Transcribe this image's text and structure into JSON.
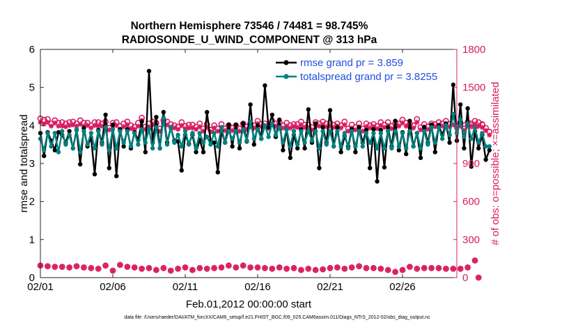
{
  "chart_data": {
    "type": "line",
    "title": "Northern Hemisphere 73546 / 74481 = 98.745%",
    "subtitle": "RADIOSONDE_U_WIND_COMPONENT @ 313 hPa",
    "xlabel": "Feb.01,2012 00:00:00 start",
    "ylabel": "rmse and totalspread",
    "y2label": "# of obs: o=possible; ×=assimilated",
    "footnote": "data file: /Users/raeder/DAI/ATM_forcXX/CAM6_setup/f.e21.FHIST_BGC.f09_025.CAM6assim.011/Diags_NTrS_2012-02/obs_diag_output.nc",
    "x_start": 1,
    "x_end": 29.75,
    "x_step": 0.25,
    "ylim": [
      0,
      6
    ],
    "y2lim": [
      0,
      1800
    ],
    "xticks": [
      1,
      6,
      11,
      16,
      21,
      26
    ],
    "xtick_labels": [
      "02/01",
      "02/06",
      "02/11",
      "02/16",
      "02/21",
      "02/26"
    ],
    "yticks": [
      "0",
      "1",
      "2",
      "3",
      "4",
      "5",
      "6"
    ],
    "y2ticks": [
      "0",
      "300",
      "600",
      "900",
      "1200",
      "1500",
      "1800"
    ],
    "legend_position": "top-right",
    "series": [
      {
        "name": "rmse grand pr = 3.859",
        "axis": "left",
        "color": "#000000",
        "marker": "dot",
        "values": [
          3.8,
          3.2,
          3.82,
          3.6,
          3.35,
          3.82,
          3.75,
          3.55,
          3.85,
          3.4,
          3.88,
          2.98,
          3.93,
          3.45,
          3.68,
          2.72,
          3.88,
          3.55,
          4.28,
          2.88,
          4.02,
          2.67,
          3.9,
          3.45,
          3.9,
          3.4,
          3.82,
          3.62,
          4.1,
          3.3,
          5.43,
          3.55,
          4.22,
          3.4,
          4.35,
          3.55,
          3.95,
          3.6,
          3.58,
          2.82,
          3.75,
          3.52,
          3.75,
          3.3,
          3.62,
          3.3,
          4.35,
          3.6,
          3.55,
          2.77,
          3.85,
          3.55,
          4.02,
          3.45,
          4.02,
          3.4,
          4.05,
          3.58,
          4.55,
          3.5,
          4.0,
          3.65,
          5.05,
          3.95,
          4.28,
          3.7,
          4.15,
          3.35,
          3.9,
          3.15,
          3.75,
          3.4,
          3.9,
          3.4,
          4.42,
          3.55,
          4.05,
          2.88,
          3.95,
          3.55,
          4.4,
          3.45,
          3.95,
          3.3,
          3.72,
          3.45,
          3.9,
          3.3,
          3.95,
          3.55,
          3.88,
          2.88,
          3.9,
          2.53,
          3.88,
          2.9,
          3.95,
          3.45,
          4.12,
          3.35,
          3.82,
          3.25,
          4.12,
          3.45,
          3.8,
          3.15,
          3.95,
          3.55,
          4.02,
          3.3,
          4.0,
          3.75,
          4.05,
          3.55,
          5.07,
          3.6,
          4.55,
          3.4,
          4.45,
          2.92,
          3.85,
          3.4,
          3.75,
          3.1,
          3.35
        ]
      },
      {
        "name": "totalspread grand pr = 3.8255",
        "axis": "left",
        "color": "#00807f",
        "marker": "dot",
        "values": [
          3.65,
          3.35,
          3.8,
          3.45,
          3.8,
          3.3,
          3.85,
          3.5,
          3.75,
          3.4,
          3.9,
          3.3,
          3.85,
          3.5,
          3.8,
          3.4,
          3.85,
          3.5,
          3.95,
          3.35,
          3.9,
          3.4,
          3.85,
          3.55,
          3.85,
          3.45,
          3.8,
          3.5,
          3.9,
          3.55,
          3.9,
          3.4,
          3.95,
          3.4,
          4.2,
          3.5,
          3.95,
          3.55,
          3.75,
          3.45,
          3.85,
          3.5,
          3.8,
          3.4,
          3.8,
          3.55,
          3.7,
          3.5,
          3.8,
          3.45,
          3.95,
          3.55,
          3.85,
          3.65,
          3.85,
          3.55,
          3.9,
          3.6,
          4.1,
          3.65,
          3.9,
          3.65,
          4.0,
          3.7,
          4.05,
          3.75,
          3.95,
          3.55,
          3.9,
          3.45,
          3.85,
          3.5,
          3.85,
          3.55,
          3.85,
          3.6,
          3.85,
          3.4,
          3.85,
          3.5,
          3.85,
          3.45,
          3.85,
          3.45,
          3.8,
          3.4,
          3.85,
          3.45,
          3.85,
          3.45,
          3.8,
          3.55,
          3.8,
          3.4,
          3.8,
          3.4,
          3.85,
          3.4,
          3.85,
          3.45,
          3.8,
          3.4,
          3.85,
          3.45,
          3.8,
          3.4,
          3.85,
          3.5,
          3.95,
          3.55,
          3.95,
          3.65,
          4.0,
          3.75,
          4.3,
          3.8,
          4.15,
          3.7,
          4.05,
          3.65,
          3.95,
          3.55,
          3.8,
          3.45,
          3.45
        ]
      },
      {
        "name": "possible obs",
        "axis": "right",
        "color": "#d81b60",
        "marker": "circle",
        "values": [
          1255,
          1245,
          1250,
          1215,
          1240,
          1220,
          1225,
          1215,
          1225,
          1230,
          1215,
          1240,
          1220,
          1220,
          1200,
          1225,
          1225,
          1215,
          1230,
          1180,
          1220,
          1225,
          1195,
          1215,
          1230,
          1200,
          1190,
          1220,
          1260,
          1190,
          1215,
          1230,
          1220,
          1175,
          1240,
          1230,
          1210,
          1200,
          1190,
          1225,
          1195,
          1205,
          1205,
          1190,
          1215,
          1175,
          1210,
          1165,
          1200,
          1175,
          1210,
          1175,
          1200,
          1180,
          1200,
          1175,
          1215,
          1190,
          1215,
          1200,
          1235,
          1210,
          1215,
          1195,
          1235,
          1215,
          1225,
          1200,
          1220,
          1200,
          1210,
          1210,
          1230,
          1205,
          1205,
          1185,
          1225,
          1215,
          1230,
          1215,
          1220,
          1205,
          1215,
          1200,
          1230,
          1175,
          1205,
          1185,
          1215,
          1175,
          1215,
          1200,
          1210,
          1195,
          1225,
          1205,
          1225,
          1195,
          1215,
          1215,
          1245,
          1220,
          1210,
          1200,
          1250,
          1185,
          1210,
          1190,
          1215,
          1210,
          1225,
          1215,
          1235,
          1210,
          1230,
          1195,
          1220,
          1175,
          1225,
          1215,
          1235,
          1225,
          1210,
          1180,
          1150
        ]
      },
      {
        "name": "assimilated obs",
        "axis": "right",
        "color": "#d81b60",
        "marker": "cross",
        "values": [
          1225,
          1210,
          1225,
          1195,
          1220,
          1195,
          1195,
          1190,
          1200,
          1205,
          1195,
          1210,
          1195,
          1200,
          1180,
          1200,
          1195,
          1195,
          1205,
          1165,
          1195,
          1200,
          1170,
          1190,
          1205,
          1175,
          1170,
          1195,
          1240,
          1170,
          1190,
          1205,
          1195,
          1155,
          1215,
          1205,
          1185,
          1180,
          1170,
          1200,
          1175,
          1180,
          1180,
          1170,
          1190,
          1155,
          1185,
          1150,
          1180,
          1155,
          1185,
          1160,
          1180,
          1160,
          1180,
          1155,
          1190,
          1170,
          1190,
          1180,
          1215,
          1190,
          1195,
          1175,
          1210,
          1195,
          1200,
          1180,
          1195,
          1180,
          1190,
          1185,
          1205,
          1185,
          1185,
          1165,
          1200,
          1195,
          1205,
          1190,
          1195,
          1185,
          1195,
          1180,
          1205,
          1155,
          1180,
          1165,
          1190,
          1155,
          1190,
          1180,
          1190,
          1175,
          1200,
          1185,
          1200,
          1175,
          1190,
          1195,
          1220,
          1195,
          1190,
          1180,
          1225,
          1165,
          1190,
          1170,
          1190,
          1190,
          1200,
          1195,
          1210,
          1190,
          1205,
          1175,
          1195,
          1155,
          1200,
          1195,
          1210,
          1195,
          1185,
          1160,
          1125
        ]
      },
      {
        "name": "possible obs (low)",
        "axis": "right",
        "color": "#d81b60",
        "marker": "circle",
        "values": [
          95,
          null,
          90,
          null,
          85,
          null,
          85,
          null,
          80,
          null,
          90,
          null,
          80,
          null,
          75,
          null,
          70,
          null,
          95,
          null,
          55,
          null,
          100,
          null,
          85,
          null,
          80,
          null,
          70,
          null,
          75,
          null,
          60,
          null,
          75,
          null,
          55,
          null,
          70,
          null,
          80,
          null,
          60,
          null,
          75,
          null,
          70,
          null,
          75,
          null,
          80,
          null,
          95,
          null,
          80,
          null,
          95,
          null,
          80,
          null,
          80,
          null,
          75,
          null,
          70,
          null,
          80,
          null,
          70,
          null,
          75,
          null,
          60,
          null,
          70,
          null,
          60,
          null,
          65,
          null,
          75,
          null,
          80,
          null,
          70,
          null,
          80,
          null,
          90,
          null,
          75,
          null,
          75,
          null,
          70,
          null,
          60,
          null,
          45,
          null,
          60,
          null,
          85,
          null,
          70,
          null,
          75,
          null,
          75,
          null,
          75,
          null,
          70,
          null,
          70,
          null,
          70,
          null,
          80,
          null,
          135,
          0
        ]
      },
      {
        "name": "assimilated obs (low)",
        "axis": "right",
        "color": "#d81b60",
        "marker": "cross",
        "values": [
          95,
          null,
          90,
          null,
          85,
          null,
          85,
          null,
          80,
          null,
          90,
          null,
          80,
          null,
          75,
          null,
          70,
          null,
          95,
          null,
          55,
          null,
          100,
          null,
          85,
          null,
          80,
          null,
          70,
          null,
          75,
          null,
          60,
          null,
          75,
          null,
          55,
          null,
          70,
          null,
          80,
          null,
          60,
          null,
          75,
          null,
          70,
          null,
          75,
          null,
          80,
          null,
          95,
          null,
          80,
          null,
          95,
          null,
          80,
          null,
          80,
          null,
          75,
          null,
          70,
          null,
          80,
          null,
          70,
          null,
          75,
          null,
          60,
          null,
          70,
          null,
          60,
          null,
          65,
          null,
          75,
          null,
          80,
          null,
          70,
          null,
          80,
          null,
          90,
          null,
          75,
          null,
          75,
          null,
          70,
          null,
          60,
          null,
          45,
          null,
          60,
          null,
          85,
          null,
          70,
          null,
          75,
          null,
          75,
          null,
          75,
          null,
          70,
          null,
          70,
          null,
          70,
          null,
          80,
          null,
          135,
          0
        ]
      }
    ]
  }
}
